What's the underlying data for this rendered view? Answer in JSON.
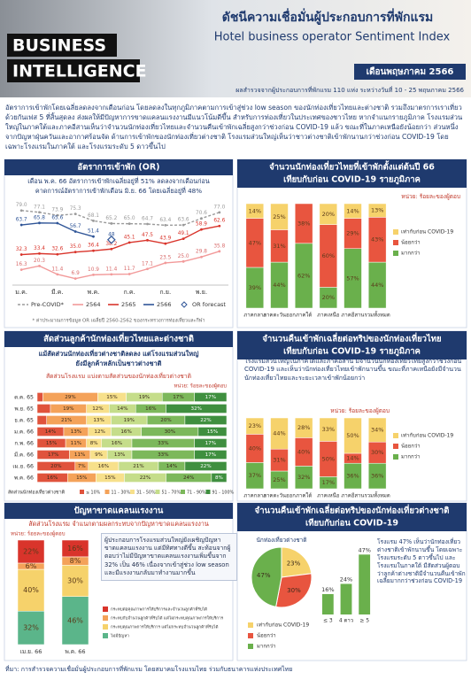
{
  "header": {
    "badge": [
      "BUSINESS",
      "INTELLIGENCE"
    ],
    "title_th": "ดัชนีความเชื่อมั่นผู้ประกอบการที่พักแรม",
    "title_en": "Hotel business operator Sentiment Index",
    "month": "เดือนพฤษภาคม 2566",
    "survey": "ผลสำรวจจากผู้ประกอบการที่พักแรม 110 แห่ง ระหว่างวันที่ 10 - 25 พฤษภาคม 2566"
  },
  "intro": "อัตราการเข้าพักโดยเฉลี่ยลดลงจากเดือนก่อน โดยลดลงในทุกภูมิภาคตามการเข้าสู่ช่วง low season ของนักท่องเที่ยวไทยและต่างชาติ รวมถึงมาตรการเราเที่ยวด้วยกันเฟส 5 ที่สิ้นสุดลง ส่งผลให้มีปัญหาการขาดแคลนแรงงานมีแนวโน้มดีขึ้น สำหรับการท่องเที่ยวในประเทศของชาวไทย หากจำแนกรายภูมิภาค โรงแรมส่วนใหญ่ในภาคใต้และภาคอีสานเห็นว่าจำนวนนักท่องเที่ยวไทยและจำนวนคืนเข้าพักเฉลี่ยสูงกว่าช่วงก่อน COVID-19 แล้ว ขณะที่ในภาคเหนือยังน้อยกว่า ส่วนหนึ่งจากปัญหาฝุ่นควันและอากาศร้อนจัด ด้านการเข้าพักของนักท่องเที่ยวต่างชาติ โรงแรมส่วนใหญ่เห็นว่าชาวต่างชาติเข้าพักนานกว่าช่วงก่อน COVID-19 โดยเฉพาะโรงแรมในภาคใต้ และโรงแรมระดับ 5 ดาวขึ้นไป",
  "source": "ที่มา: การสำรวจความเชื่อมั่นผู้ประกอบการที่พักแรม โดยสมาคมโรงแรมไทย ร่วมกับธนาคารแห่งประเทศไทย",
  "chart_data": [
    {
      "type": "line",
      "title": [
        "อัตราการเข้าพัก (OR)"
      ],
      "subtitle": [
        "เดือน พ.ค. 66 อัตราการเข้าพักเฉลี่ยอยู่ที่ 51% ลดลงจากเดือนก่อน",
        "คาดการณ์อัตราการเข้าพักเดือน มิ.ย. 66 โดยเฉลี่ยอยู่ที่ 48%"
      ],
      "note": "* ค่าประมาณการข้อมูล OR เฉลี่ยปี 2560-2562 ของกระทรวงการท่องเที่ยวและกีฬา",
      "categories": [
        "ม.ค.",
        null,
        "มี.ค.",
        null,
        "พ.ค.",
        null,
        "ก.ค.",
        null,
        "ก.ย.",
        null,
        "พ.ย.",
        null
      ],
      "ylim": [
        0,
        90
      ],
      "series": [
        {
          "name": "Pre-COVID*",
          "color": "#9a9a9a",
          "dashed": true,
          "values": [
            79.0,
            77.1,
            73.9,
            75.3,
            68.1,
            65.2,
            65.0,
            64.7,
            63.4,
            63.6,
            70.6,
            77.0
          ],
          "value_labels": [
            "79.0",
            "77.1",
            "73.9",
            "75.3",
            "68.1",
            "65.2",
            "65.0",
            "64.7",
            "63.4",
            "63.6",
            "70.6",
            "77.0"
          ]
        },
        {
          "name": "2564",
          "color": "#f29a9a",
          "values": [
            16.3,
            20.3,
            11.4,
            6.9,
            10.9,
            11.4,
            11.7,
            17.1,
            23.5,
            25.0,
            29.8,
            35.8
          ],
          "value_labels": [
            "16.3",
            "20.3",
            "11.4",
            "6.9",
            "10.9",
            "11.4",
            "11.7",
            "17.1",
            "23.5",
            "25.0",
            "29.8",
            "35.8"
          ]
        },
        {
          "name": "2565",
          "color": "#d9342b",
          "values": [
            32.3,
            33.4,
            32.6,
            35.0,
            36.4,
            38.2,
            45.1,
            47.5,
            43.9,
            49.1,
            58.9,
            62.6
          ],
          "value_labels": [
            "32.3",
            "33.4",
            "32.6",
            "35.0",
            "36.4",
            "38.2",
            "45.1",
            "47.5",
            "43.9",
            "49.1",
            "58.9",
            "62.6"
          ]
        },
        {
          "name": "2566",
          "color": "#2f5597",
          "values": [
            63.7,
            65.8,
            65.6,
            56.7,
            51.4,
            null,
            null,
            null,
            null,
            null,
            null,
            null
          ],
          "value_labels": [
            "63.7",
            "65.8",
            "65.6",
            "56.7",
            "51.4",
            null,
            null,
            null,
            null,
            null,
            null,
            null
          ]
        },
        {
          "name": "OR forecast",
          "color": "#2f5597",
          "marker": "diamond",
          "values": [
            null,
            null,
            null,
            null,
            null,
            48,
            null,
            null,
            null,
            null,
            null,
            null
          ],
          "value_labels": [
            null,
            null,
            null,
            null,
            null,
            "48",
            null,
            null,
            null,
            null,
            null,
            null
          ]
        }
      ]
    },
    {
      "type": "stacked_bar",
      "title": [
        "จำนวนนักท่องเที่ยวไทยที่เข้าพักตั้งแต่ต้นปี 66",
        "เทียบกับก่อน COVID-19 รายภูมิภาค"
      ],
      "unit_note": "หน่วย: ร้อยละของผู้ตอบ",
      "categories": [
        "ภาคกลาง",
        "ภาคตะวันออก",
        "ภาคใต้",
        "ภาคเหนือ",
        "ภาคอีสาน",
        "รวมทั้งหมด"
      ],
      "ylim": [
        0,
        100
      ],
      "series": [
        {
          "name": "มากกว่า",
          "color": "#6ab04c",
          "values": [
            39,
            44,
            62,
            20,
            57,
            44
          ],
          "value_labels": [
            "39%",
            "44%",
            "62%",
            "20%",
            "57%",
            "44%"
          ]
        },
        {
          "name": "น้อยกว่า",
          "color": "#e8553f",
          "values": [
            47,
            31,
            38,
            60,
            29,
            43
          ],
          "value_labels": [
            "47%",
            "31%",
            "38%",
            "60%",
            "29%",
            "43%"
          ]
        },
        {
          "name": "เท่ากับก่อน COVID-19",
          "color": "#f6d26b",
          "values": [
            14,
            25,
            null,
            20,
            14,
            13
          ],
          "value_labels": [
            "14%",
            "25%",
            null,
            "20%",
            "14%",
            "13%"
          ]
        }
      ]
    },
    {
      "type": "stacked_barh",
      "title": [
        "สัดส่วนลูกค้านักท่องเที่ยวไทยและต่างชาติ"
      ],
      "subtitle": [
        "แม้สัดส่วนนักท่องเที่ยวต่างชาติลดลง แต่โรงแรมส่วนใหญ่",
        "ยังมีลูกค้าหลักเป็นชาวต่างชาติ"
      ],
      "chart_title": "สัดส่วนโรงแรม แบ่งตามสัดส่วนของนักท่องเที่ยวต่างชาติ",
      "unit_note": "หน่วย: ร้อยละของผู้ตอบ",
      "x_label": "สัดส่วนนักท่องเที่ยวต่างชาติ",
      "categories": [
        "ต.ค. 65",
        "พ.ย. 65",
        "ธ.ค. 65",
        "ม.ค. 66",
        "ก.พ. 66",
        "มี.ค. 66",
        "เม.ย. 66",
        "พ.ค. 66"
      ],
      "xlim": [
        0,
        100
      ],
      "series": [
        {
          "name": "≤ 10%",
          "color": "#e0533c",
          "values": [
            3,
            7,
            5,
            14,
            15,
            17,
            20,
            16
          ],
          "value_labels": [
            null,
            null,
            null,
            "14%",
            "15%",
            "17%",
            "20%",
            "16%"
          ]
        },
        {
          "name": "11 - 30%",
          "color": "#f4a259",
          "values": [
            29,
            19,
            21,
            13,
            11,
            11,
            7,
            15
          ],
          "value_labels": [
            "29%",
            "19%",
            "21%",
            "13%",
            "11%",
            "11%",
            "7%",
            "15%"
          ]
        },
        {
          "name": "31 - 50%",
          "color": "#f7e08b",
          "values": [
            15,
            12,
            13,
            12,
            8,
            9,
            16,
            15
          ],
          "value_labels": [
            "15%",
            "12%",
            "13%",
            "12%",
            "8%",
            "9%",
            "16%",
            "15%"
          ]
        },
        {
          "name": "51 - 70%",
          "color": "#c5dd8a",
          "values": [
            19,
            14,
            19,
            16,
            16,
            13,
            21,
            22
          ],
          "value_labels": [
            "19%",
            "14%",
            "19%",
            "16%",
            "16%",
            "13%",
            "21%",
            "22%"
          ]
        },
        {
          "name": "71 - 90%",
          "color": "#7cb85b",
          "values": [
            17,
            16,
            20,
            30,
            33,
            33,
            14,
            24
          ],
          "value_labels": [
            "17%",
            "16%",
            "20%",
            "30%",
            "33%",
            "33%",
            "14%",
            "24%"
          ]
        },
        {
          "name": "91 - 100%",
          "color": "#3f8f3f",
          "values": [
            17,
            32,
            22,
            15,
            17,
            17,
            22,
            8
          ],
          "value_labels": [
            "17%",
            "32%",
            "22%",
            "15%",
            "17%",
            "17%",
            "22%",
            "8%"
          ]
        }
      ]
    },
    {
      "type": "stacked_bar",
      "title": [
        "จำนวนคืนเข้าพักเฉลี่ยต่อทริปของนักท่องเที่ยวไทย",
        "เทียบกับก่อน COVID-19 รายภูมิภาค"
      ],
      "text": "โรงแรมส่วนใหญ่ในภาคใต้และภาคอีสาน มีจำนวนนักท่องเที่ยวไทยสูงกว่าช่วงก่อน COVID-19 และเห็นว่านักท่องเที่ยวไทยเข้าพักนานขึ้น ขณะที่ภาคเหนือยังมีจำนวนนักท่องเที่ยวไทยและระยะเวลาเข้าพักน้อยกว่า",
      "unit_note": "หน่วย: ร้อยละของผู้ตอบ",
      "categories": [
        "ภาคกลาง",
        "ภาคตะวันออก",
        "ภาคใต้",
        "ภาคเหนือ",
        "ภาคอีสาน",
        "รวมทั้งหมด"
      ],
      "ylim": [
        0,
        100
      ],
      "series": [
        {
          "name": "มากกว่า",
          "color": "#6ab04c",
          "values": [
            37,
            25,
            32,
            17,
            36,
            36
          ],
          "value_labels": [
            "37%",
            "25%",
            "32%",
            "17%",
            "36%",
            "36%"
          ]
        },
        {
          "name": "น้อยกว่า",
          "color": "#e8553f",
          "values": [
            40,
            31,
            40,
            50,
            14,
            30
          ],
          "value_labels": [
            "40%",
            "31%",
            "40%",
            "50%",
            "14%",
            "30%"
          ]
        },
        {
          "name": "เท่ากับก่อน COVID-19",
          "color": "#f6d26b",
          "values": [
            23,
            44,
            28,
            33,
            50,
            34
          ],
          "value_labels": [
            "23%",
            "44%",
            "28%",
            "33%",
            "50%",
            "34%"
          ]
        }
      ]
    },
    {
      "type": "stacked_bar",
      "title": [
        "ปัญหาขาดแคลนแรงงาน"
      ],
      "subtitle": [
        "สัดส่วนโรงแรม จำแนกตามผลกระทบจากปัญหาขาดแคลนแรงงาน"
      ],
      "unit_note": "หน่วย: ร้อยละของผู้ตอบ",
      "text": "ผู้ประกอบการโรงแรมส่วนใหญ่ยังเผชิญปัญหาขาดแคลนแรงงาน แต่มีทิศทางดีขึ้น สะท้อนจากผู้ตอบว่าไม่มีปัญหาขาดแคลนแรงงานเพิ่มขึ้นจาก 32% เป็น 46% เนื่องจากเข้าสู่ช่วง low season และมีแรงงานกลับมาทำงานมากขึ้น",
      "categories": [
        "เม.ย. 66",
        "พ.ค. 66"
      ],
      "ylim": [
        0,
        100
      ],
      "series": [
        {
          "name": "ไม่มีปัญหา",
          "color": "#5bb58a",
          "values": [
            32,
            46
          ],
          "value_labels": [
            "32%",
            "46%"
          ]
        },
        {
          "name": "กระทบคุณภาพการให้บริการ แต่ไม่กระทบจำนวนลูกค้าที่รับได้",
          "color": "#f6d26b",
          "values": [
            40,
            30
          ],
          "value_labels": [
            "40%",
            "30%"
          ]
        },
        {
          "name": "กระทบกับจำนวนลูกค้าที่รับได้ แต่ไม่กระทบคุณภาพการให้บริการ",
          "color": "#f4a259",
          "values": [
            6,
            8
          ],
          "value_labels": [
            "6%",
            "8%"
          ]
        },
        {
          "name": "กระทบต่อคุณภาพการให้บริการและจำนวนลูกค้าที่รับได้",
          "color": "#d9342b",
          "values": [
            22,
            16
          ],
          "value_labels": [
            "22%",
            "16%"
          ]
        }
      ]
    },
    {
      "type": "pie",
      "title": [
        "จำนวนคืนเข้าพักเฉลี่ยต่อทริปของนักท่องเที่ยวต่างชาติ",
        "เทียบกับก่อน COVID-19"
      ],
      "pie_title": "นักท่องเที่ยวต่างชาติ",
      "text": "โรงแรม 47% เห็นว่านักท่องเที่ยวต่างชาติเข้าพักนานขึ้น โดยเฉพาะโรงแรมระดับ 5 ดาวขึ้นไป และโรงแรมในภาคใต้ มีสัดส่วนผู้ตอบว่าลูกค้าต่างชาติมีจำนวนคืนเข้าพักเฉลี่ยมากกว่าช่วงก่อน COVID-19",
      "categories": [
        "เท่ากับก่อน COVID-19",
        "น้อยกว่า",
        "มากกว่า"
      ],
      "colors": [
        "#f6d26b",
        "#e8553f",
        "#6ab04c"
      ],
      "values": [
        23,
        30,
        47
      ],
      "value_labels": [
        "23%",
        "30%",
        "47%"
      ]
    },
    {
      "type": "bar",
      "categories": [
        "≤ 3",
        "4 ดาว",
        "≥ 5"
      ],
      "color": "#6ab04c",
      "ylim": [
        0,
        50
      ],
      "values": [
        16,
        24,
        47
      ],
      "value_labels": [
        "16%",
        "24%",
        "47%"
      ]
    }
  ]
}
